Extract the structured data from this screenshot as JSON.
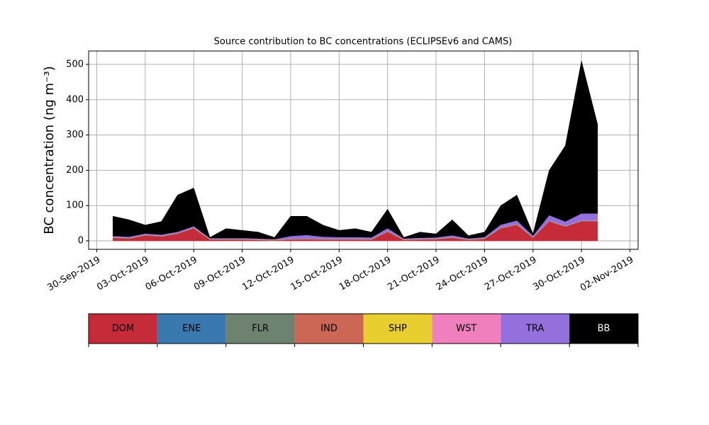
{
  "chart_data": {
    "type": "stacked_area",
    "title": "Source contribution to BC concentrations (ECLIPSEv6 and CAMS)",
    "y_label": "BC concentration (ng m⁻³)",
    "x": [
      "01-Oct-2019",
      "02-Oct-2019",
      "03-Oct-2019",
      "04-Oct-2019",
      "05-Oct-2019",
      "06-Oct-2019",
      "07-Oct-2019",
      "08-Oct-2019",
      "09-Oct-2019",
      "10-Oct-2019",
      "11-Oct-2019",
      "12-Oct-2019",
      "13-Oct-2019",
      "14-Oct-2019",
      "15-Oct-2019",
      "16-Oct-2019",
      "17-Oct-2019",
      "18-Oct-2019",
      "19-Oct-2019",
      "20-Oct-2019",
      "21-Oct-2019",
      "22-Oct-2019",
      "23-Oct-2019",
      "24-Oct-2019",
      "25-Oct-2019",
      "26-Oct-2019",
      "27-Oct-2019",
      "28-Oct-2019",
      "29-Oct-2019",
      "30-Oct-2019",
      "31-Oct-2019"
    ],
    "series": [
      {
        "name": "DOM",
        "color": "#c62b3a",
        "values": [
          8,
          6,
          15,
          12,
          20,
          35,
          3,
          3,
          3,
          2,
          1,
          3,
          4,
          3,
          3,
          3,
          3,
          25,
          2,
          3,
          4,
          8,
          2,
          5,
          35,
          45,
          8,
          55,
          40,
          55,
          55
        ]
      },
      {
        "name": "ENE",
        "color": "#3a78b0",
        "values": [
          0.5,
          0.5,
          0.5,
          0.5,
          0.5,
          0.5,
          0.5,
          0.5,
          0.5,
          0.5,
          0.5,
          0.5,
          0.5,
          0.5,
          0.5,
          0.5,
          0.5,
          0.5,
          0.5,
          0.5,
          0.5,
          0.5,
          0.5,
          0.5,
          0.5,
          0.5,
          0.5,
          0.5,
          0.5,
          0.5,
          0.5
        ]
      },
      {
        "name": "FLR",
        "color": "#6e8270",
        "values": [
          0.3,
          0.3,
          0.3,
          0.3,
          0.3,
          0.3,
          0.3,
          0.3,
          0.3,
          0.3,
          0.3,
          0.3,
          0.3,
          0.3,
          0.3,
          0.3,
          0.3,
          0.3,
          0.3,
          0.3,
          0.3,
          0.3,
          0.3,
          0.3,
          0.3,
          0.3,
          0.3,
          0.3,
          0.3,
          0.3,
          0.3
        ]
      },
      {
        "name": "IND",
        "color": "#cc6655",
        "values": [
          1,
          1,
          1,
          1,
          1,
          1,
          1,
          1,
          1,
          1,
          1,
          1,
          1,
          1,
          1,
          1,
          1,
          1,
          1,
          1,
          1,
          1,
          1,
          1,
          1,
          1,
          1,
          1,
          1,
          1,
          1
        ]
      },
      {
        "name": "SHP",
        "color": "#e8cf2f",
        "values": [
          0.5,
          0.5,
          0.5,
          0.5,
          0.5,
          0.5,
          0.5,
          0.5,
          0.5,
          0.5,
          0.5,
          0.5,
          0.5,
          0.5,
          0.5,
          0.5,
          0.5,
          0.5,
          0.5,
          0.5,
          0.5,
          0.5,
          0.5,
          0.5,
          0.5,
          0.5,
          0.5,
          0.5,
          0.5,
          0.5,
          0.5
        ]
      },
      {
        "name": "WST",
        "color": "#f07fbd",
        "values": [
          0.5,
          0.5,
          0.5,
          0.5,
          0.5,
          0.5,
          0.5,
          0.5,
          0.5,
          0.5,
          0.5,
          0.5,
          0.5,
          0.5,
          0.5,
          0.5,
          0.5,
          0.5,
          0.5,
          0.5,
          0.5,
          0.5,
          0.5,
          0.5,
          0.5,
          0.5,
          0.5,
          0.5,
          0.5,
          0.5,
          0.5
        ]
      },
      {
        "name": "TRA",
        "color": "#9370db",
        "values": [
          3,
          3,
          3,
          3,
          3,
          4,
          2,
          2,
          2,
          2,
          1,
          8,
          10,
          6,
          5,
          5,
          4,
          8,
          2,
          3,
          3,
          5,
          2,
          3,
          8,
          10,
          4,
          15,
          12,
          20,
          20
        ]
      },
      {
        "name": "BB",
        "color": "#000000",
        "values": [
          56,
          48,
          24,
          37,
          104,
          108,
          2,
          27,
          22,
          18,
          5,
          56,
          53,
          33,
          19,
          24,
          15,
          54,
          3,
          16,
          10,
          44,
          8,
          14,
          54,
          72,
          5,
          127,
          215,
          432,
          252
        ]
      }
    ],
    "xlim": [
      "30-Sep-2019",
      "02-Nov-2019"
    ],
    "xticks": [
      "30-Sep-2019",
      "03-Oct-2019",
      "06-Oct-2019",
      "09-Oct-2019",
      "12-Oct-2019",
      "15-Oct-2019",
      "18-Oct-2019",
      "21-Oct-2019",
      "24-Oct-2019",
      "27-Oct-2019",
      "30-Oct-2019",
      "02-Nov-2019"
    ],
    "ylim": [
      -24,
      538
    ],
    "yticks": [
      0,
      100,
      200,
      300,
      400,
      500
    ],
    "grid": true
  }
}
